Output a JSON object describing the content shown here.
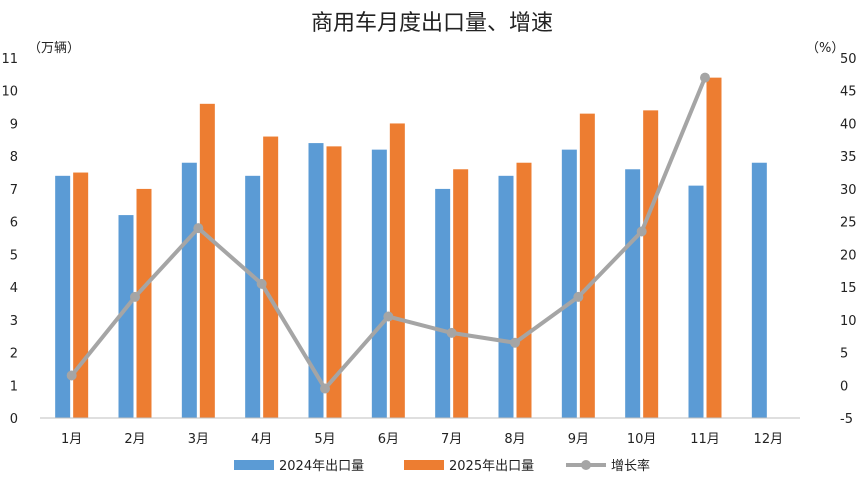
{
  "chart_data": {
    "type": "bar",
    "title": "商用车月度出口量、增速",
    "y_left_unit": "（万辆）",
    "y_right_unit": "（%）",
    "categories": [
      "1月",
      "2月",
      "3月",
      "4月",
      "5月",
      "6月",
      "7月",
      "8月",
      "9月",
      "10月",
      "11月",
      "12月"
    ],
    "series": [
      {
        "name": "2024年出口量",
        "kind": "bar",
        "axis": "left",
        "color": "#5b9bd5",
        "values": [
          7.4,
          6.2,
          7.8,
          7.4,
          8.4,
          8.2,
          7.0,
          7.4,
          8.2,
          7.6,
          7.1,
          7.8
        ]
      },
      {
        "name": "2025年出口量",
        "kind": "bar",
        "axis": "left",
        "color": "#ed7d31",
        "values": [
          7.5,
          7.0,
          9.6,
          8.6,
          8.3,
          9.0,
          7.6,
          7.8,
          9.3,
          9.4,
          10.4,
          null
        ]
      },
      {
        "name": "增长率",
        "kind": "line",
        "axis": "right",
        "color": "#a5a5a5",
        "values": [
          1.5,
          13.5,
          24.0,
          15.5,
          -0.5,
          10.5,
          8.0,
          6.5,
          13.5,
          23.5,
          47.0,
          null
        ]
      }
    ],
    "y_left": {
      "min": 0,
      "max": 11,
      "step": 1,
      "ticks": [
        "0",
        "1",
        "2",
        "3",
        "4",
        "5",
        "6",
        "7",
        "8",
        "9",
        "10",
        "11"
      ]
    },
    "y_right": {
      "min": -5,
      "max": 50,
      "step": 5,
      "ticks": [
        "-5",
        "0",
        "5",
        "10",
        "15",
        "20",
        "25",
        "30",
        "35",
        "40",
        "45",
        "50"
      ]
    },
    "legend_position": "bottom",
    "grid": false
  }
}
